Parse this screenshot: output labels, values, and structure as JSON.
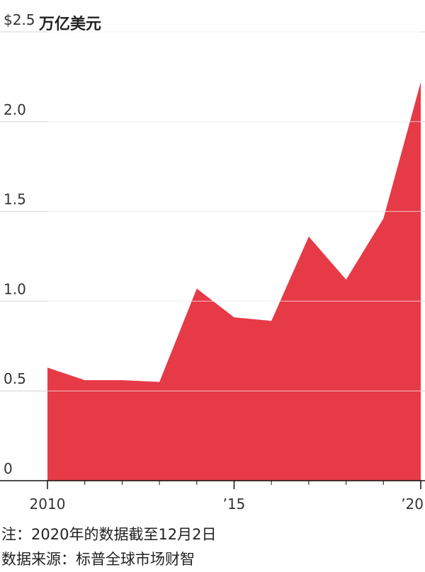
{
  "chart_data": {
    "type": "area",
    "y_unit": "万亿美元",
    "x": [
      2010,
      2011,
      2012,
      2013,
      2014,
      2015,
      2016,
      2017,
      2018,
      2019,
      2020
    ],
    "values": [
      0.63,
      0.56,
      0.56,
      0.55,
      1.07,
      0.91,
      0.89,
      1.36,
      1.12,
      1.46,
      2.22
    ],
    "color": "#e63a47",
    "xlim": [
      2010,
      2020
    ],
    "xticks": [
      2010,
      {
        "value": 2015,
        "label": "’15"
      },
      {
        "value": 2020,
        "label": "’20"
      }
    ],
    "ylim": [
      0,
      2.5
    ],
    "yticks": [
      0,
      0.5,
      {
        "value": 1.0,
        "label": "1.0"
      },
      1.5,
      {
        "value": 2.0,
        "label": "2.0"
      },
      {
        "value": 2.5,
        "label": "$2.5"
      }
    ],
    "grid": true,
    "notes": [
      "注：2020年的数据截至12月2日",
      "数据来源：标普全球市场财智"
    ]
  }
}
